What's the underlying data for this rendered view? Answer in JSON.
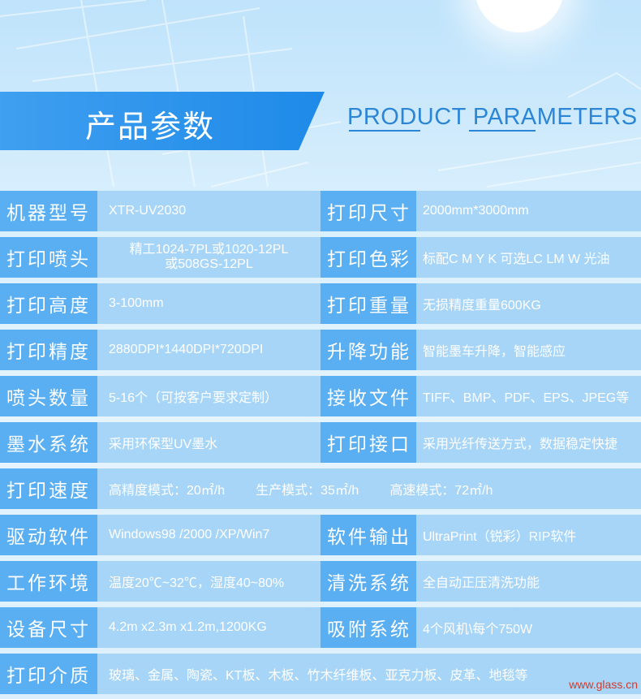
{
  "header": {
    "title_cn": "产品参数",
    "title_en": "PRODUCT PARAMETERS"
  },
  "rows": [
    {
      "label": "机器型号",
      "value": "XTR-UV2030",
      "label2": "打印尺寸",
      "value2": "2000mm*3000mm"
    },
    {
      "label": "打印喷头",
      "value_lines": [
        "精工1024-7PL或1020-12PL",
        "或508GS-12PL"
      ],
      "label2": "打印色彩",
      "value2": "标配C M Y K 可选LC LM W 光油"
    },
    {
      "label": "打印高度",
      "value": "3-100mm",
      "label2": "打印重量",
      "value2": "无损精度重量600KG"
    },
    {
      "label": "打印精度",
      "value": "2880DPI*1440DPI*720DPI",
      "label2": "升降功能",
      "value2": "智能墨车升降，智能感应"
    },
    {
      "label": "喷头数量",
      "value": "5-16个（可按客户要求定制）",
      "label2": "接收文件",
      "value2": "TIFF、BMP、PDF、EPS、JPEG等"
    },
    {
      "label": "墨水系统",
      "value": "采用环保型UV墨水",
      "label2": "打印接口",
      "value2": "采用光纤传送方式，数据稳定快捷"
    },
    {
      "label": "打印速度",
      "values": [
        "高精度模式：20㎡/h",
        "生产模式：35㎡/h",
        "高速模式：72㎡/h"
      ]
    },
    {
      "label": "驱动软件",
      "value": "Windows98 /2000 /XP/Win7",
      "label2": "软件输出",
      "value2": "UltraPrint（锐彩）RIP软件"
    },
    {
      "label": "工作环境",
      "value": "温度20℃~32℃，湿度40~80%",
      "label2": "清洗系统",
      "value2": "全自动正压清洗功能"
    },
    {
      "label": "设备尺寸",
      "value": "4.2m x2.3m x1.2m,1200KG",
      "label2": "吸附系统",
      "value2": "4个风机\\每个750W"
    },
    {
      "label": "打印介质",
      "value": "玻璃、金属、陶瓷、KT板、木板、竹木纤维板、亚克力板、皮革、地毯等"
    }
  ],
  "watermark": "www.glass.cn",
  "colors": {
    "label_bg": "#5aaef2",
    "value_bg": "#a7d5f8",
    "banner": "#1e8ae8",
    "title_en": "#2b86d6",
    "watermark": "#d23a2a"
  }
}
